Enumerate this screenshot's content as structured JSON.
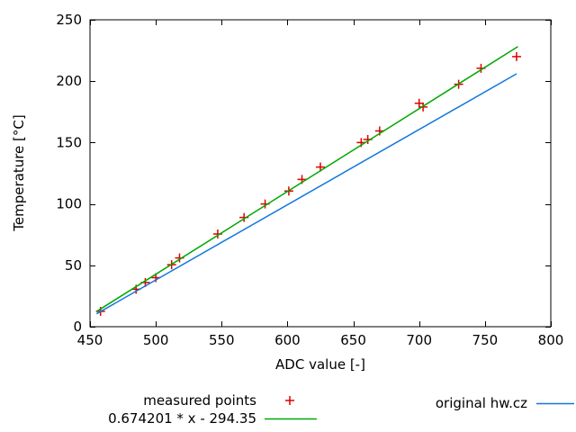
{
  "colors": {
    "measured": "#e00000",
    "fit": "#00a800",
    "hwcz": "#1177dd",
    "axis": "#000000",
    "background": "#ffffff"
  },
  "axes": {
    "xlabel": "ADC value [-]",
    "ylabel": "Temperature [°C]"
  },
  "legend": {
    "measured_label": "measured points",
    "fit_label": "0.674201 * x - 294.35",
    "hwcz_label": "original hw.cz"
  },
  "chart_data": {
    "type": "scatter",
    "title": "",
    "xlabel": "ADC value [-]",
    "ylabel": "Temperature [°C]",
    "xlim": [
      450,
      800
    ],
    "ylim": [
      0,
      250
    ],
    "x_ticks": [
      450,
      500,
      550,
      600,
      650,
      700,
      750,
      800
    ],
    "y_ticks": [
      0,
      50,
      100,
      150,
      200,
      250
    ],
    "grid": false,
    "legend_position": "below-plot",
    "series": [
      {
        "name": "measured points",
        "type": "scatter",
        "marker": "plus",
        "color": "#e00000",
        "points": [
          [
            458,
            12.5
          ],
          [
            485,
            30.5
          ],
          [
            492,
            36
          ],
          [
            500,
            40
          ],
          [
            512,
            50.5
          ],
          [
            518,
            56
          ],
          [
            547,
            75.5
          ],
          [
            567,
            89
          ],
          [
            583,
            100
          ],
          [
            601,
            110.5
          ],
          [
            611,
            120
          ],
          [
            625,
            130
          ],
          [
            656,
            150
          ],
          [
            661,
            152.5
          ],
          [
            670,
            159.5
          ],
          [
            700,
            182
          ],
          [
            703,
            179
          ],
          [
            730,
            197.5
          ],
          [
            747,
            210.5
          ],
          [
            774,
            220
          ]
        ]
      },
      {
        "name": "0.674201 * x - 294.35",
        "type": "line",
        "color": "#00a800",
        "formula": {
          "slope": 0.674201,
          "intercept": -294.35
        },
        "x_range": [
          455,
          775
        ]
      },
      {
        "name": "original hw.cz",
        "type": "line",
        "color": "#1177dd",
        "points": [
          [
            455,
            10.5
          ],
          [
            774,
            206
          ]
        ]
      }
    ]
  }
}
